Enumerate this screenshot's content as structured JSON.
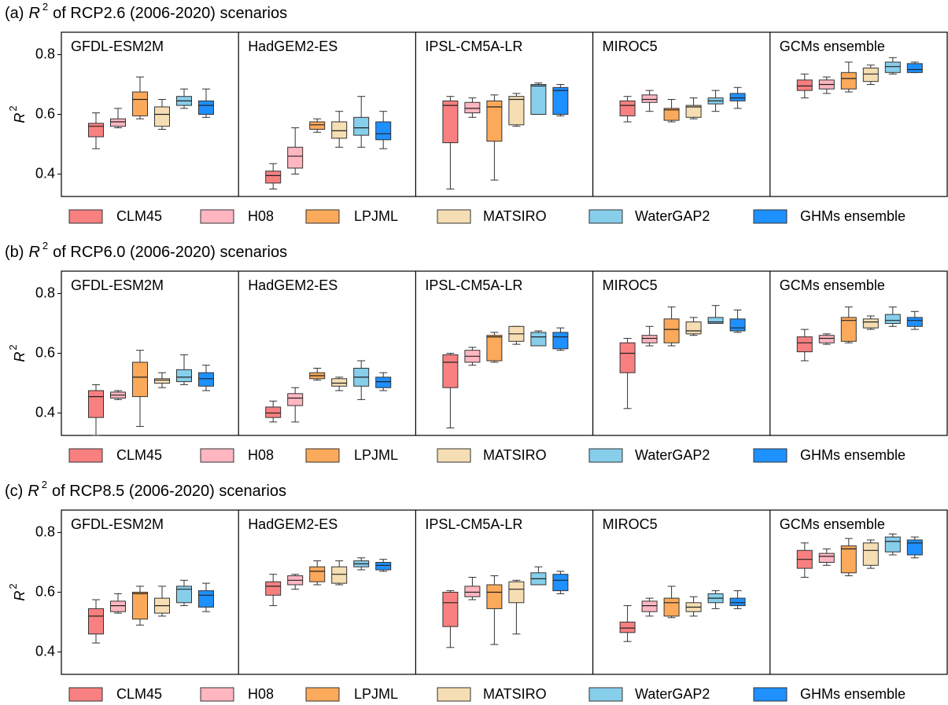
{
  "chart_data": [
    {
      "type": "box",
      "title": {
        "label": "(a)",
        "symbol": "R",
        "superscript": "2",
        "text": "of RCP2.6 (2006-2020) scenarios"
      },
      "ylabel": {
        "symbol": "R",
        "superscript": "2"
      },
      "ylim": [
        0.325,
        0.875
      ],
      "yticks": [
        0.4,
        0.6,
        0.8
      ],
      "grid": false,
      "series": [
        {
          "name": "CLM45",
          "color": "#f88080"
        },
        {
          "name": "H08",
          "color": "#ffb6c1"
        },
        {
          "name": "LPJML",
          "color": "#fba95a"
        },
        {
          "name": "MATSIRO",
          "color": "#f5deb3"
        },
        {
          "name": "WaterGAP2",
          "color": "#87ceeb"
        },
        {
          "name": "GHMs ensemble",
          "color": "#1e90ff"
        }
      ],
      "panels": [
        {
          "title": "GFDL-ESM2M",
          "boxes": [
            [
              0.485,
              0.525,
              0.56,
              0.57,
              0.605
            ],
            [
              0.555,
              0.56,
              0.575,
              0.585,
              0.62
            ],
            [
              0.585,
              0.595,
              0.65,
              0.675,
              0.725
            ],
            [
              0.55,
              0.56,
              0.6,
              0.625,
              0.65
            ],
            [
              0.62,
              0.63,
              0.645,
              0.66,
              0.685
            ],
            [
              0.59,
              0.6,
              0.63,
              0.645,
              0.685
            ]
          ]
        },
        {
          "title": "HadGEM2-ES",
          "boxes": [
            [
              0.35,
              0.37,
              0.395,
              0.41,
              0.435
            ],
            [
              0.4,
              0.42,
              0.46,
              0.49,
              0.555
            ],
            [
              0.54,
              0.55,
              0.565,
              0.575,
              0.585
            ],
            [
              0.49,
              0.52,
              0.545,
              0.575,
              0.61
            ],
            [
              0.49,
              0.53,
              0.555,
              0.59,
              0.66
            ],
            [
              0.485,
              0.515,
              0.535,
              0.575,
              0.61
            ]
          ]
        },
        {
          "title": "IPSL-CM5A-LR",
          "boxes": [
            [
              0.35,
              0.505,
              0.63,
              0.645,
              0.66
            ],
            [
              0.59,
              0.605,
              0.62,
              0.64,
              0.655
            ],
            [
              0.38,
              0.51,
              0.625,
              0.645,
              0.665
            ],
            [
              0.56,
              0.565,
              0.65,
              0.66,
              0.67
            ],
            [
              0.6,
              0.6,
              0.695,
              0.7,
              0.705
            ],
            [
              0.595,
              0.6,
              0.68,
              0.69,
              0.7
            ]
          ]
        },
        {
          "title": "MIROC5",
          "boxes": [
            [
              0.575,
              0.595,
              0.63,
              0.645,
              0.66
            ],
            [
              0.61,
              0.64,
              0.65,
              0.665,
              0.68
            ],
            [
              0.575,
              0.58,
              0.615,
              0.62,
              0.65
            ],
            [
              0.585,
              0.59,
              0.625,
              0.63,
              0.655
            ],
            [
              0.61,
              0.635,
              0.645,
              0.655,
              0.68
            ],
            [
              0.62,
              0.645,
              0.655,
              0.67,
              0.69
            ]
          ]
        },
        {
          "title": "GCMs ensemble",
          "boxes": [
            [
              0.655,
              0.68,
              0.695,
              0.715,
              0.735
            ],
            [
              0.67,
              0.685,
              0.7,
              0.715,
              0.725
            ],
            [
              0.675,
              0.685,
              0.72,
              0.74,
              0.775
            ],
            [
              0.7,
              0.71,
              0.735,
              0.755,
              0.765
            ],
            [
              0.735,
              0.74,
              0.76,
              0.775,
              0.79
            ],
            [
              0.74,
              0.74,
              0.75,
              0.77,
              0.775
            ]
          ]
        }
      ]
    },
    {
      "type": "box",
      "title": {
        "label": "(b)",
        "symbol": "R",
        "superscript": "2",
        "text": "of RCP6.0 (2006-2020) scenarios"
      },
      "ylabel": {
        "symbol": "R",
        "superscript": "2"
      },
      "ylim": [
        0.325,
        0.875
      ],
      "yticks": [
        0.4,
        0.6,
        0.8
      ],
      "grid": false,
      "series": [
        {
          "name": "CLM45",
          "color": "#f88080"
        },
        {
          "name": "H08",
          "color": "#ffb6c1"
        },
        {
          "name": "LPJML",
          "color": "#fba95a"
        },
        {
          "name": "MATSIRO",
          "color": "#f5deb3"
        },
        {
          "name": "WaterGAP2",
          "color": "#87ceeb"
        },
        {
          "name": "GHMs ensemble",
          "color": "#1e90ff"
        }
      ],
      "panels": [
        {
          "title": "GFDL-ESM2M",
          "boxes": [
            [
              0.325,
              0.385,
              0.455,
              0.475,
              0.495
            ],
            [
              0.445,
              0.45,
              0.46,
              0.47,
              0.475
            ],
            [
              0.355,
              0.455,
              0.52,
              0.57,
              0.61
            ],
            [
              0.485,
              0.5,
              0.51,
              0.515,
              0.535
            ],
            [
              0.495,
              0.505,
              0.52,
              0.545,
              0.595
            ],
            [
              0.475,
              0.49,
              0.515,
              0.535,
              0.56
            ]
          ]
        },
        {
          "title": "HadGEM2-ES",
          "boxes": [
            [
              0.37,
              0.385,
              0.4,
              0.42,
              0.44
            ],
            [
              0.37,
              0.425,
              0.45,
              0.465,
              0.485
            ],
            [
              0.51,
              0.515,
              0.525,
              0.535,
              0.55
            ],
            [
              0.475,
              0.49,
              0.5,
              0.515,
              0.52
            ],
            [
              0.445,
              0.49,
              0.52,
              0.55,
              0.575
            ],
            [
              0.475,
              0.485,
              0.505,
              0.52,
              0.535
            ]
          ]
        },
        {
          "title": "IPSL-CM5A-LR",
          "boxes": [
            [
              0.35,
              0.485,
              0.57,
              0.595,
              0.6
            ],
            [
              0.56,
              0.57,
              0.59,
              0.61,
              0.62
            ],
            [
              0.57,
              0.575,
              0.655,
              0.66,
              0.67
            ],
            [
              0.63,
              0.64,
              0.665,
              0.69,
              0.69
            ],
            [
              0.625,
              0.625,
              0.655,
              0.67,
              0.675
            ],
            [
              0.61,
              0.615,
              0.655,
              0.67,
              0.685
            ]
          ]
        },
        {
          "title": "MIROC5",
          "boxes": [
            [
              0.415,
              0.535,
              0.6,
              0.635,
              0.65
            ],
            [
              0.625,
              0.635,
              0.65,
              0.66,
              0.69
            ],
            [
              0.625,
              0.635,
              0.68,
              0.715,
              0.755
            ],
            [
              0.66,
              0.665,
              0.675,
              0.705,
              0.72
            ],
            [
              0.7,
              0.7,
              0.705,
              0.72,
              0.76
            ],
            [
              0.67,
              0.675,
              0.685,
              0.715,
              0.745
            ]
          ]
        },
        {
          "title": "GCMs ensemble",
          "boxes": [
            [
              0.575,
              0.605,
              0.635,
              0.655,
              0.68
            ],
            [
              0.63,
              0.635,
              0.65,
              0.66,
              0.665
            ],
            [
              0.635,
              0.64,
              0.71,
              0.72,
              0.755
            ],
            [
              0.68,
              0.685,
              0.705,
              0.715,
              0.725
            ],
            [
              0.69,
              0.7,
              0.71,
              0.73,
              0.755
            ],
            [
              0.68,
              0.69,
              0.71,
              0.72,
              0.74
            ]
          ]
        }
      ]
    },
    {
      "type": "box",
      "title": {
        "label": "(c)",
        "symbol": "R",
        "superscript": "2",
        "text": "of RCP8.5 (2006-2020) scenarios"
      },
      "ylabel": {
        "symbol": "R",
        "superscript": "2"
      },
      "ylim": [
        0.325,
        0.875
      ],
      "yticks": [
        0.4,
        0.6,
        0.8
      ],
      "grid": false,
      "series": [
        {
          "name": "CLM45",
          "color": "#f88080"
        },
        {
          "name": "H08",
          "color": "#ffb6c1"
        },
        {
          "name": "LPJML",
          "color": "#fba95a"
        },
        {
          "name": "MATSIRO",
          "color": "#f5deb3"
        },
        {
          "name": "WaterGAP2",
          "color": "#87ceeb"
        },
        {
          "name": "GHMs ensemble",
          "color": "#1e90ff"
        }
      ],
      "panels": [
        {
          "title": "GFDL-ESM2M",
          "boxes": [
            [
              0.43,
              0.46,
              0.52,
              0.545,
              0.575
            ],
            [
              0.53,
              0.535,
              0.555,
              0.57,
              0.595
            ],
            [
              0.49,
              0.51,
              0.595,
              0.6,
              0.62
            ],
            [
              0.52,
              0.53,
              0.555,
              0.58,
              0.62
            ],
            [
              0.555,
              0.565,
              0.61,
              0.62,
              0.64
            ],
            [
              0.535,
              0.55,
              0.59,
              0.605,
              0.63
            ]
          ]
        },
        {
          "title": "HadGEM2-ES",
          "boxes": [
            [
              0.555,
              0.59,
              0.62,
              0.635,
              0.66
            ],
            [
              0.61,
              0.625,
              0.64,
              0.655,
              0.66
            ],
            [
              0.625,
              0.635,
              0.67,
              0.685,
              0.705
            ],
            [
              0.625,
              0.63,
              0.66,
              0.685,
              0.705
            ],
            [
              0.675,
              0.685,
              0.695,
              0.705,
              0.715
            ],
            [
              0.67,
              0.675,
              0.69,
              0.7,
              0.71
            ]
          ]
        },
        {
          "title": "IPSL-CM5A-LR",
          "boxes": [
            [
              0.415,
              0.485,
              0.565,
              0.6,
              0.605
            ],
            [
              0.575,
              0.585,
              0.6,
              0.62,
              0.65
            ],
            [
              0.425,
              0.545,
              0.6,
              0.625,
              0.655
            ],
            [
              0.46,
              0.565,
              0.61,
              0.635,
              0.64
            ],
            [
              0.625,
              0.625,
              0.645,
              0.665,
              0.685
            ],
            [
              0.595,
              0.605,
              0.64,
              0.66,
              0.67
            ]
          ]
        },
        {
          "title": "MIROC5",
          "boxes": [
            [
              0.435,
              0.465,
              0.48,
              0.5,
              0.555
            ],
            [
              0.52,
              0.535,
              0.555,
              0.57,
              0.58
            ],
            [
              0.515,
              0.52,
              0.565,
              0.58,
              0.62
            ],
            [
              0.52,
              0.535,
              0.55,
              0.565,
              0.585
            ],
            [
              0.545,
              0.565,
              0.58,
              0.595,
              0.605
            ],
            [
              0.545,
              0.555,
              0.565,
              0.58,
              0.605
            ]
          ]
        },
        {
          "title": "GCMs ensemble",
          "boxes": [
            [
              0.65,
              0.68,
              0.71,
              0.74,
              0.765
            ],
            [
              0.69,
              0.7,
              0.72,
              0.73,
              0.745
            ],
            [
              0.655,
              0.665,
              0.745,
              0.755,
              0.78
            ],
            [
              0.68,
              0.69,
              0.74,
              0.765,
              0.775
            ],
            [
              0.725,
              0.735,
              0.77,
              0.785,
              0.795
            ],
            [
              0.715,
              0.725,
              0.765,
              0.775,
              0.785
            ]
          ]
        }
      ]
    }
  ]
}
